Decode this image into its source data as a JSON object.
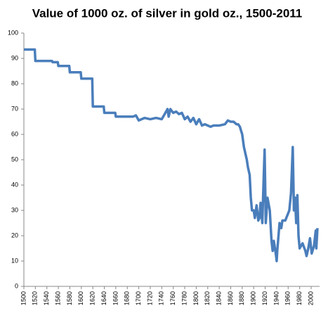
{
  "chart_data": {
    "type": "line",
    "title": "Value of 1000 oz. of silver in gold oz., 1500-2011",
    "x": [
      1500,
      1519,
      1520,
      1549,
      1550,
      1559,
      1560,
      1579,
      1580,
      1599,
      1600,
      1619,
      1620,
      1639,
      1640,
      1659,
      1660,
      1690,
      1695,
      1700,
      1705,
      1710,
      1720,
      1730,
      1740,
      1745,
      1750,
      1752,
      1755,
      1760,
      1765,
      1770,
      1775,
      1780,
      1785,
      1790,
      1795,
      1800,
      1805,
      1810,
      1815,
      1820,
      1825,
      1830,
      1840,
      1850,
      1855,
      1860,
      1865,
      1870,
      1873,
      1876,
      1880,
      1883,
      1885,
      1888,
      1890,
      1892,
      1893,
      1895,
      1897,
      1900,
      1902,
      1905,
      1908,
      1910,
      1912,
      1915,
      1917,
      1919,
      1920,
      1921,
      1924,
      1928,
      1931,
      1933,
      1935,
      1939,
      1940,
      1941,
      1945,
      1948,
      1950,
      1955,
      1962,
      1965,
      1968,
      1970,
      1972,
      1974,
      1976,
      1978,
      1980,
      1985,
      1990,
      1992,
      1995,
      1998,
      2001,
      2005,
      2008,
      2009,
      2011
    ],
    "series": [
      {
        "name": "Value",
        "color": "#4a7ebb",
        "values": [
          93.5,
          93.5,
          89,
          89,
          88.5,
          88.5,
          87,
          87,
          84.5,
          84.5,
          82,
          82,
          71,
          71,
          68.5,
          68.5,
          67,
          67,
          67.5,
          65.5,
          66,
          66.5,
          66,
          66.5,
          66,
          68,
          70,
          67,
          70,
          68.5,
          69,
          68,
          68.5,
          66,
          67,
          65,
          66.5,
          64,
          66,
          63.5,
          64,
          63.5,
          63,
          63.5,
          63.5,
          64,
          65.5,
          65,
          65,
          64,
          64,
          63,
          60,
          55,
          53,
          50,
          47,
          45,
          44,
          35,
          30,
          30,
          27,
          32,
          26,
          27,
          33,
          25,
          40,
          54,
          40,
          25,
          35,
          30,
          18,
          14,
          18,
          12,
          10,
          14,
          25,
          23,
          26,
          26,
          30,
          37,
          55,
          30,
          35,
          25,
          36,
          20,
          15,
          17,
          14,
          12,
          15,
          19,
          13,
          16,
          22,
          15,
          23
        ]
      }
    ],
    "xlim": [
      1500,
      2011
    ],
    "ylim": [
      0,
      100
    ],
    "xticks": [
      1500,
      1520,
      1540,
      1560,
      1580,
      1600,
      1620,
      1640,
      1660,
      1680,
      1700,
      1720,
      1740,
      1760,
      1780,
      1800,
      1820,
      1840,
      1860,
      1880,
      1900,
      1920,
      1940,
      1960,
      1980,
      2000
    ],
    "yticks": [
      0,
      10,
      20,
      30,
      40,
      50,
      60,
      70,
      80,
      90,
      100
    ]
  }
}
